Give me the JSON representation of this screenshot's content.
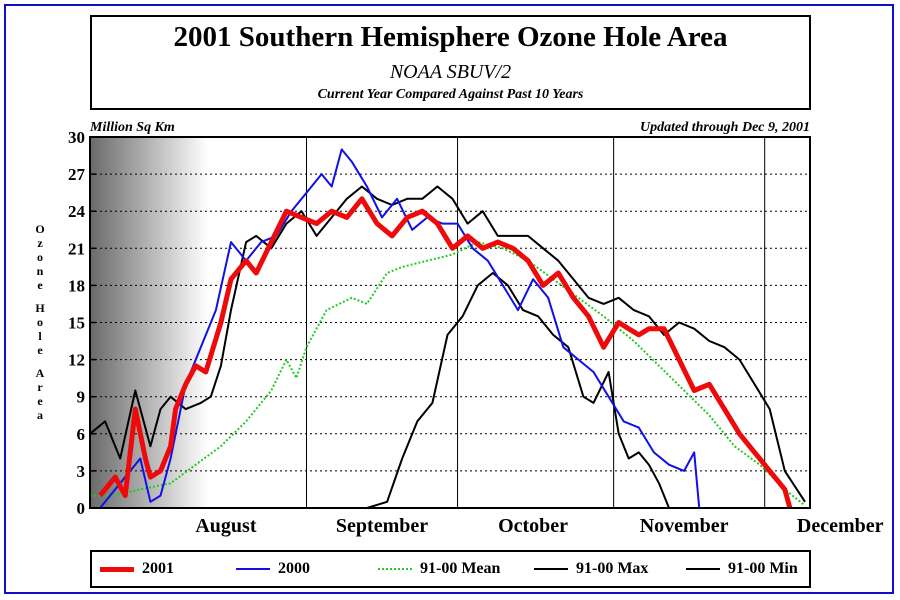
{
  "chart_data": {
    "type": "line",
    "title": "2001 Southern Hemisphere Ozone Hole Area",
    "subtitle": "NOAA SBUV/2",
    "note": "Current Year Compared Against Past 10 Years",
    "units_label": "Million Sq Km",
    "updated_label": "Updated through Dec 9, 2001",
    "ylabel": "Ozone Hole Area",
    "ylim": [
      0,
      30
    ],
    "yticks": [
      0,
      3,
      6,
      9,
      12,
      15,
      18,
      21,
      24,
      27,
      30
    ],
    "xlim": [
      "2001-07-20",
      "2001-12-10"
    ],
    "month_labels": [
      {
        "label": "August",
        "date": "2001-08-16"
      },
      {
        "label": "September",
        "date": "2001-09-16"
      },
      {
        "label": "October",
        "date": "2001-10-16"
      },
      {
        "label": "November",
        "date": "2001-11-15"
      },
      {
        "label": "December",
        "date": "2001-12-16"
      }
    ],
    "month_boundaries": [
      "2001-09-01",
      "2001-10-01",
      "2001-11-01",
      "2001-12-01"
    ],
    "grid": true,
    "series": [
      {
        "name": "91-00 Mean",
        "color": "#22cc22",
        "style": "dotted",
        "x": [
          "2001-07-20",
          "2001-07-25",
          "2001-07-30",
          "2001-08-05",
          "2001-08-10",
          "2001-08-15",
          "2001-08-20",
          "2001-08-25",
          "2001-08-28",
          "2001-08-30",
          "2001-09-01",
          "2001-09-05",
          "2001-09-10",
          "2001-09-13",
          "2001-09-17",
          "2001-09-20",
          "2001-09-25",
          "2001-09-30",
          "2001-10-05",
          "2001-10-10",
          "2001-10-15",
          "2001-10-20",
          "2001-10-25",
          "2001-10-30",
          "2001-11-05",
          "2001-11-10",
          "2001-11-15",
          "2001-11-20",
          "2001-11-25",
          "2001-11-30",
          "2001-12-05",
          "2001-12-09"
        ],
        "y": [
          1.0,
          1.0,
          1.5,
          2.0,
          3.5,
          5.0,
          7.0,
          9.5,
          12.0,
          10.5,
          13.0,
          16.0,
          17.0,
          16.5,
          19.0,
          19.5,
          20.0,
          20.5,
          21.5,
          21.0,
          20.0,
          18.5,
          17.0,
          15.5,
          13.5,
          11.5,
          9.5,
          7.5,
          5.0,
          3.5,
          1.5,
          0.2
        ]
      },
      {
        "name": "91-00 Max",
        "color": "#000000",
        "style": "solid",
        "x": [
          "2001-07-20",
          "2001-07-23",
          "2001-07-26",
          "2001-07-29",
          "2001-08-01",
          "2001-08-03",
          "2001-08-05",
          "2001-08-08",
          "2001-08-11",
          "2001-08-13",
          "2001-08-15",
          "2001-08-17",
          "2001-08-20",
          "2001-08-22",
          "2001-08-25",
          "2001-08-28",
          "2001-08-31",
          "2001-09-03",
          "2001-09-06",
          "2001-09-09",
          "2001-09-12",
          "2001-09-15",
          "2001-09-18",
          "2001-09-21",
          "2001-09-24",
          "2001-09-27",
          "2001-09-30",
          "2001-10-03",
          "2001-10-06",
          "2001-10-09",
          "2001-10-12",
          "2001-10-15",
          "2001-10-18",
          "2001-10-21",
          "2001-10-24",
          "2001-10-27",
          "2001-10-30",
          "2001-11-02",
          "2001-11-05",
          "2001-11-08",
          "2001-11-11",
          "2001-11-14",
          "2001-11-17",
          "2001-11-20",
          "2001-11-23",
          "2001-11-26",
          "2001-11-29",
          "2001-12-02",
          "2001-12-05",
          "2001-12-09"
        ],
        "y": [
          6.0,
          7.0,
          4.0,
          9.5,
          5.0,
          8.0,
          9.0,
          8.0,
          8.5,
          9.0,
          11.5,
          16.0,
          21.5,
          22.0,
          21.0,
          23.0,
          24.0,
          22.0,
          23.5,
          25.0,
          26.0,
          25.0,
          24.5,
          25.0,
          25.0,
          26.0,
          25.0,
          23.0,
          24.0,
          22.0,
          22.0,
          22.0,
          21.0,
          20.0,
          18.5,
          17.0,
          16.5,
          17.0,
          16.0,
          15.5,
          14.0,
          15.0,
          14.5,
          13.5,
          13.0,
          12.0,
          10.0,
          8.0,
          3.0,
          0.5
        ]
      },
      {
        "name": "91-00 Min",
        "color": "#000000",
        "style": "solid",
        "x": [
          "2001-09-13",
          "2001-09-17",
          "2001-09-20",
          "2001-09-23",
          "2001-09-26",
          "2001-09-29",
          "2001-10-02",
          "2001-10-05",
          "2001-10-08",
          "2001-10-11",
          "2001-10-14",
          "2001-10-17",
          "2001-10-20",
          "2001-10-23",
          "2001-10-26",
          "2001-10-28",
          "2001-10-31",
          "2001-11-02",
          "2001-11-04",
          "2001-11-06",
          "2001-11-08",
          "2001-11-10",
          "2001-11-12"
        ],
        "y": [
          0.0,
          0.5,
          4.0,
          7.0,
          8.5,
          14.0,
          15.5,
          18.0,
          19.0,
          18.0,
          16.0,
          15.5,
          14.0,
          13.0,
          9.0,
          8.5,
          11.0,
          6.0,
          4.0,
          4.5,
          3.5,
          2.0,
          0.0
        ]
      },
      {
        "name": "2000",
        "color": "#1010e8",
        "style": "solid",
        "x": [
          "2001-07-20",
          "2001-07-22",
          "2001-07-30",
          "2001-08-01",
          "2001-08-03",
          "2001-08-05",
          "2001-08-08",
          "2001-08-11",
          "2001-08-14",
          "2001-08-17",
          "2001-08-20",
          "2001-08-23",
          "2001-08-26",
          "2001-08-29",
          "2001-09-01",
          "2001-09-04",
          "2001-09-06",
          "2001-09-08",
          "2001-09-10",
          "2001-09-13",
          "2001-09-16",
          "2001-09-19",
          "2001-09-22",
          "2001-09-25",
          "2001-09-28",
          "2001-10-01",
          "2001-10-04",
          "2001-10-07",
          "2001-10-10",
          "2001-10-13",
          "2001-10-16",
          "2001-10-19",
          "2001-10-22",
          "2001-10-25",
          "2001-10-28",
          "2001-10-31",
          "2001-11-03",
          "2001-11-06",
          "2001-11-09",
          "2001-11-12",
          "2001-11-15",
          "2001-11-17",
          "2001-11-18",
          "2001-11-20",
          "2001-12-09"
        ],
        "y": [
          0.0,
          0.0,
          4.0,
          0.5,
          1.0,
          4.0,
          10.0,
          13.0,
          16.0,
          21.5,
          20.0,
          21.5,
          22.0,
          24.0,
          25.5,
          27.0,
          26.0,
          29.0,
          28.0,
          26.0,
          23.5,
          25.0,
          22.5,
          23.5,
          23.0,
          23.0,
          21.0,
          20.0,
          18.0,
          16.0,
          18.5,
          17.0,
          13.0,
          12.0,
          11.0,
          9.0,
          7.0,
          6.5,
          4.5,
          3.5,
          3.0,
          4.5,
          0.0,
          0.0,
          0.0
        ]
      },
      {
        "name": "2001",
        "color": "#ee0a0a",
        "style": "thick",
        "x": [
          "2001-07-22",
          "2001-07-25",
          "2001-07-27",
          "2001-07-29",
          "2001-07-31",
          "2001-08-01",
          "2001-08-03",
          "2001-08-05",
          "2001-08-06",
          "2001-08-08",
          "2001-08-10",
          "2001-08-12",
          "2001-08-15",
          "2001-08-17",
          "2001-08-20",
          "2001-08-22",
          "2001-08-25",
          "2001-08-28",
          "2001-08-31",
          "2001-09-03",
          "2001-09-06",
          "2001-09-09",
          "2001-09-12",
          "2001-09-15",
          "2001-09-18",
          "2001-09-21",
          "2001-09-24",
          "2001-09-27",
          "2001-09-30",
          "2001-10-03",
          "2001-10-06",
          "2001-10-09",
          "2001-10-12",
          "2001-10-15",
          "2001-10-18",
          "2001-10-21",
          "2001-10-24",
          "2001-10-27",
          "2001-10-30",
          "2001-11-02",
          "2001-11-04",
          "2001-11-06",
          "2001-11-08",
          "2001-11-11",
          "2001-11-14",
          "2001-11-17",
          "2001-11-20",
          "2001-11-23",
          "2001-11-26",
          "2001-11-29",
          "2001-12-02",
          "2001-12-05",
          "2001-12-06"
        ],
        "y": [
          1.0,
          2.5,
          1.0,
          8.0,
          4.0,
          2.5,
          3.0,
          5.0,
          8.0,
          10.0,
          11.5,
          11.0,
          15.0,
          18.5,
          20.0,
          19.0,
          21.5,
          24.0,
          23.5,
          23.0,
          24.0,
          23.5,
          25.0,
          23.0,
          22.0,
          23.5,
          24.0,
          23.0,
          21.0,
          22.0,
          21.0,
          21.5,
          21.0,
          20.0,
          18.0,
          19.0,
          17.0,
          15.5,
          13.0,
          15.0,
          14.5,
          14.0,
          14.5,
          14.5,
          12.0,
          9.5,
          10.0,
          8.0,
          6.0,
          4.5,
          3.0,
          1.5,
          0.0
        ]
      }
    ],
    "legend": [
      "2001",
      "2000",
      "91-00 Mean",
      "91-00 Max",
      "91-00 Min"
    ],
    "legend_placement": "bottom"
  }
}
